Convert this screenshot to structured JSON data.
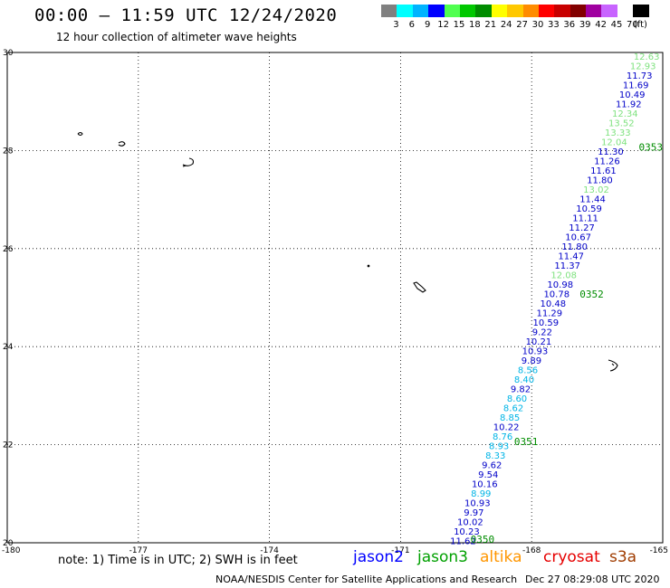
{
  "header": {
    "title": "00:00 – 11:59 UTC 12/24/2020",
    "subtitle": "12 hour collection of altimeter wave heights"
  },
  "legend": {
    "colors": [
      "#808080",
      "#00ffff",
      "#00b4ff",
      "#0000ff",
      "#50ff50",
      "#00c800",
      "#008c00",
      "#ffff00",
      "#ffc800",
      "#ff8c00",
      "#ff0000",
      "#c80000",
      "#820000",
      "#a000a0",
      "#c864ff",
      "#ffffff",
      "#000000"
    ],
    "labels": [
      "3",
      "6",
      "9",
      "12",
      "15",
      "18",
      "21",
      "24",
      "27",
      "30",
      "33",
      "36",
      "39",
      "42",
      "45",
      "70",
      "(ft)"
    ]
  },
  "axes": {
    "lon_ticks": [
      "-180",
      "-177",
      "-174",
      "-171",
      "-168",
      "-165"
    ],
    "lat_ticks": [
      "30",
      "28",
      "26",
      "24",
      "22",
      "20"
    ],
    "lon_min": -180,
    "lon_max": -165,
    "lat_min": 20,
    "lat_max": 30
  },
  "track": [
    {
      "v": "12.63",
      "c": "#7fe27f"
    },
    {
      "v": "12.93",
      "c": "#7fe27f"
    },
    {
      "v": "11.73",
      "c": "#0000c8"
    },
    {
      "v": "11.69",
      "c": "#0000c8"
    },
    {
      "v": "10.49",
      "c": "#0000c8"
    },
    {
      "v": "11.92",
      "c": "#0000c8"
    },
    {
      "v": "12.34",
      "c": "#7fe27f"
    },
    {
      "v": "13.52",
      "c": "#7fe27f"
    },
    {
      "v": "13.33",
      "c": "#7fe27f"
    },
    {
      "v": "12.04",
      "c": "#7fe27f"
    },
    {
      "v": "11.30",
      "c": "#0000c8"
    },
    {
      "v": "11.26",
      "c": "#0000c8"
    },
    {
      "v": "11.61",
      "c": "#0000c8"
    },
    {
      "v": "11.80",
      "c": "#0000c8"
    },
    {
      "v": "13.02",
      "c": "#7fe27f"
    },
    {
      "v": "11.44",
      "c": "#0000c8"
    },
    {
      "v": "10.59",
      "c": "#0000c8"
    },
    {
      "v": "11.11",
      "c": "#0000c8"
    },
    {
      "v": "11.27",
      "c": "#0000c8"
    },
    {
      "v": "10.67",
      "c": "#0000c8"
    },
    {
      "v": "11.80",
      "c": "#0000c8"
    },
    {
      "v": "11.47",
      "c": "#0000c8"
    },
    {
      "v": "11.37",
      "c": "#0000c8"
    },
    {
      "v": "12.08",
      "c": "#7fe27f"
    },
    {
      "v": "10.98",
      "c": "#0000c8"
    },
    {
      "v": "10.78",
      "c": "#0000c8"
    },
    {
      "v": "10.48",
      "c": "#0000c8"
    },
    {
      "v": "11.29",
      "c": "#0000c8"
    },
    {
      "v": "10.59",
      "c": "#0000c8"
    },
    {
      "v": "9.22",
      "c": "#0000c8"
    },
    {
      "v": "10.21",
      "c": "#0000c8"
    },
    {
      "v": "10.93",
      "c": "#0000c8"
    },
    {
      "v": "9.89",
      "c": "#0000c8"
    },
    {
      "v": "8.56",
      "c": "#00b4e6"
    },
    {
      "v": "8.40",
      "c": "#00b4e6"
    },
    {
      "v": "9.82",
      "c": "#0000c8"
    },
    {
      "v": "8.60",
      "c": "#00b4e6"
    },
    {
      "v": "8.62",
      "c": "#00b4e6"
    },
    {
      "v": "8.85",
      "c": "#00b4e6"
    },
    {
      "v": "10.22",
      "c": "#0000c8"
    },
    {
      "v": "8.76",
      "c": "#00b4e6"
    },
    {
      "v": "8.93",
      "c": "#00b4e6"
    },
    {
      "v": "8.33",
      "c": "#00b4e6"
    },
    {
      "v": "9.62",
      "c": "#0000c8"
    },
    {
      "v": "9.54",
      "c": "#0000c8"
    },
    {
      "v": "10.16",
      "c": "#0000c8"
    },
    {
      "v": "8.99",
      "c": "#00b4e6"
    },
    {
      "v": "10.93",
      "c": "#0000c8"
    },
    {
      "v": "9.97",
      "c": "#0000c8"
    },
    {
      "v": "10.02",
      "c": "#0000c8"
    },
    {
      "v": "10.23",
      "c": "#0000c8"
    },
    {
      "v": "11.62",
      "c": "#0000c8"
    }
  ],
  "time_labels": [
    {
      "text": "0353",
      "lon": -165.55,
      "lat": 28.07
    },
    {
      "text": "0352",
      "lon": -166.9,
      "lat": 25.07
    },
    {
      "text": "0351",
      "lon": -168.4,
      "lat": 22.07
    },
    {
      "text": "0350",
      "lon": -169.4,
      "lat": 20.07
    }
  ],
  "footer": {
    "note": "note:  1) Time is in UTC;  2) SWH is in feet",
    "satellites": [
      {
        "name": "jason2",
        "color": "#0000ff"
      },
      {
        "name": "jason3",
        "color": "#00a000"
      },
      {
        "name": "altika",
        "color": "#ff9600"
      },
      {
        "name": "cryosat",
        "color": "#e60000"
      },
      {
        "name": "s3a",
        "color": "#a03c00"
      }
    ],
    "credit": "NOAA/NESDIS Center for Satellite Applications and Research",
    "date": "Dec 27 08:29:08 UTC 2020"
  }
}
